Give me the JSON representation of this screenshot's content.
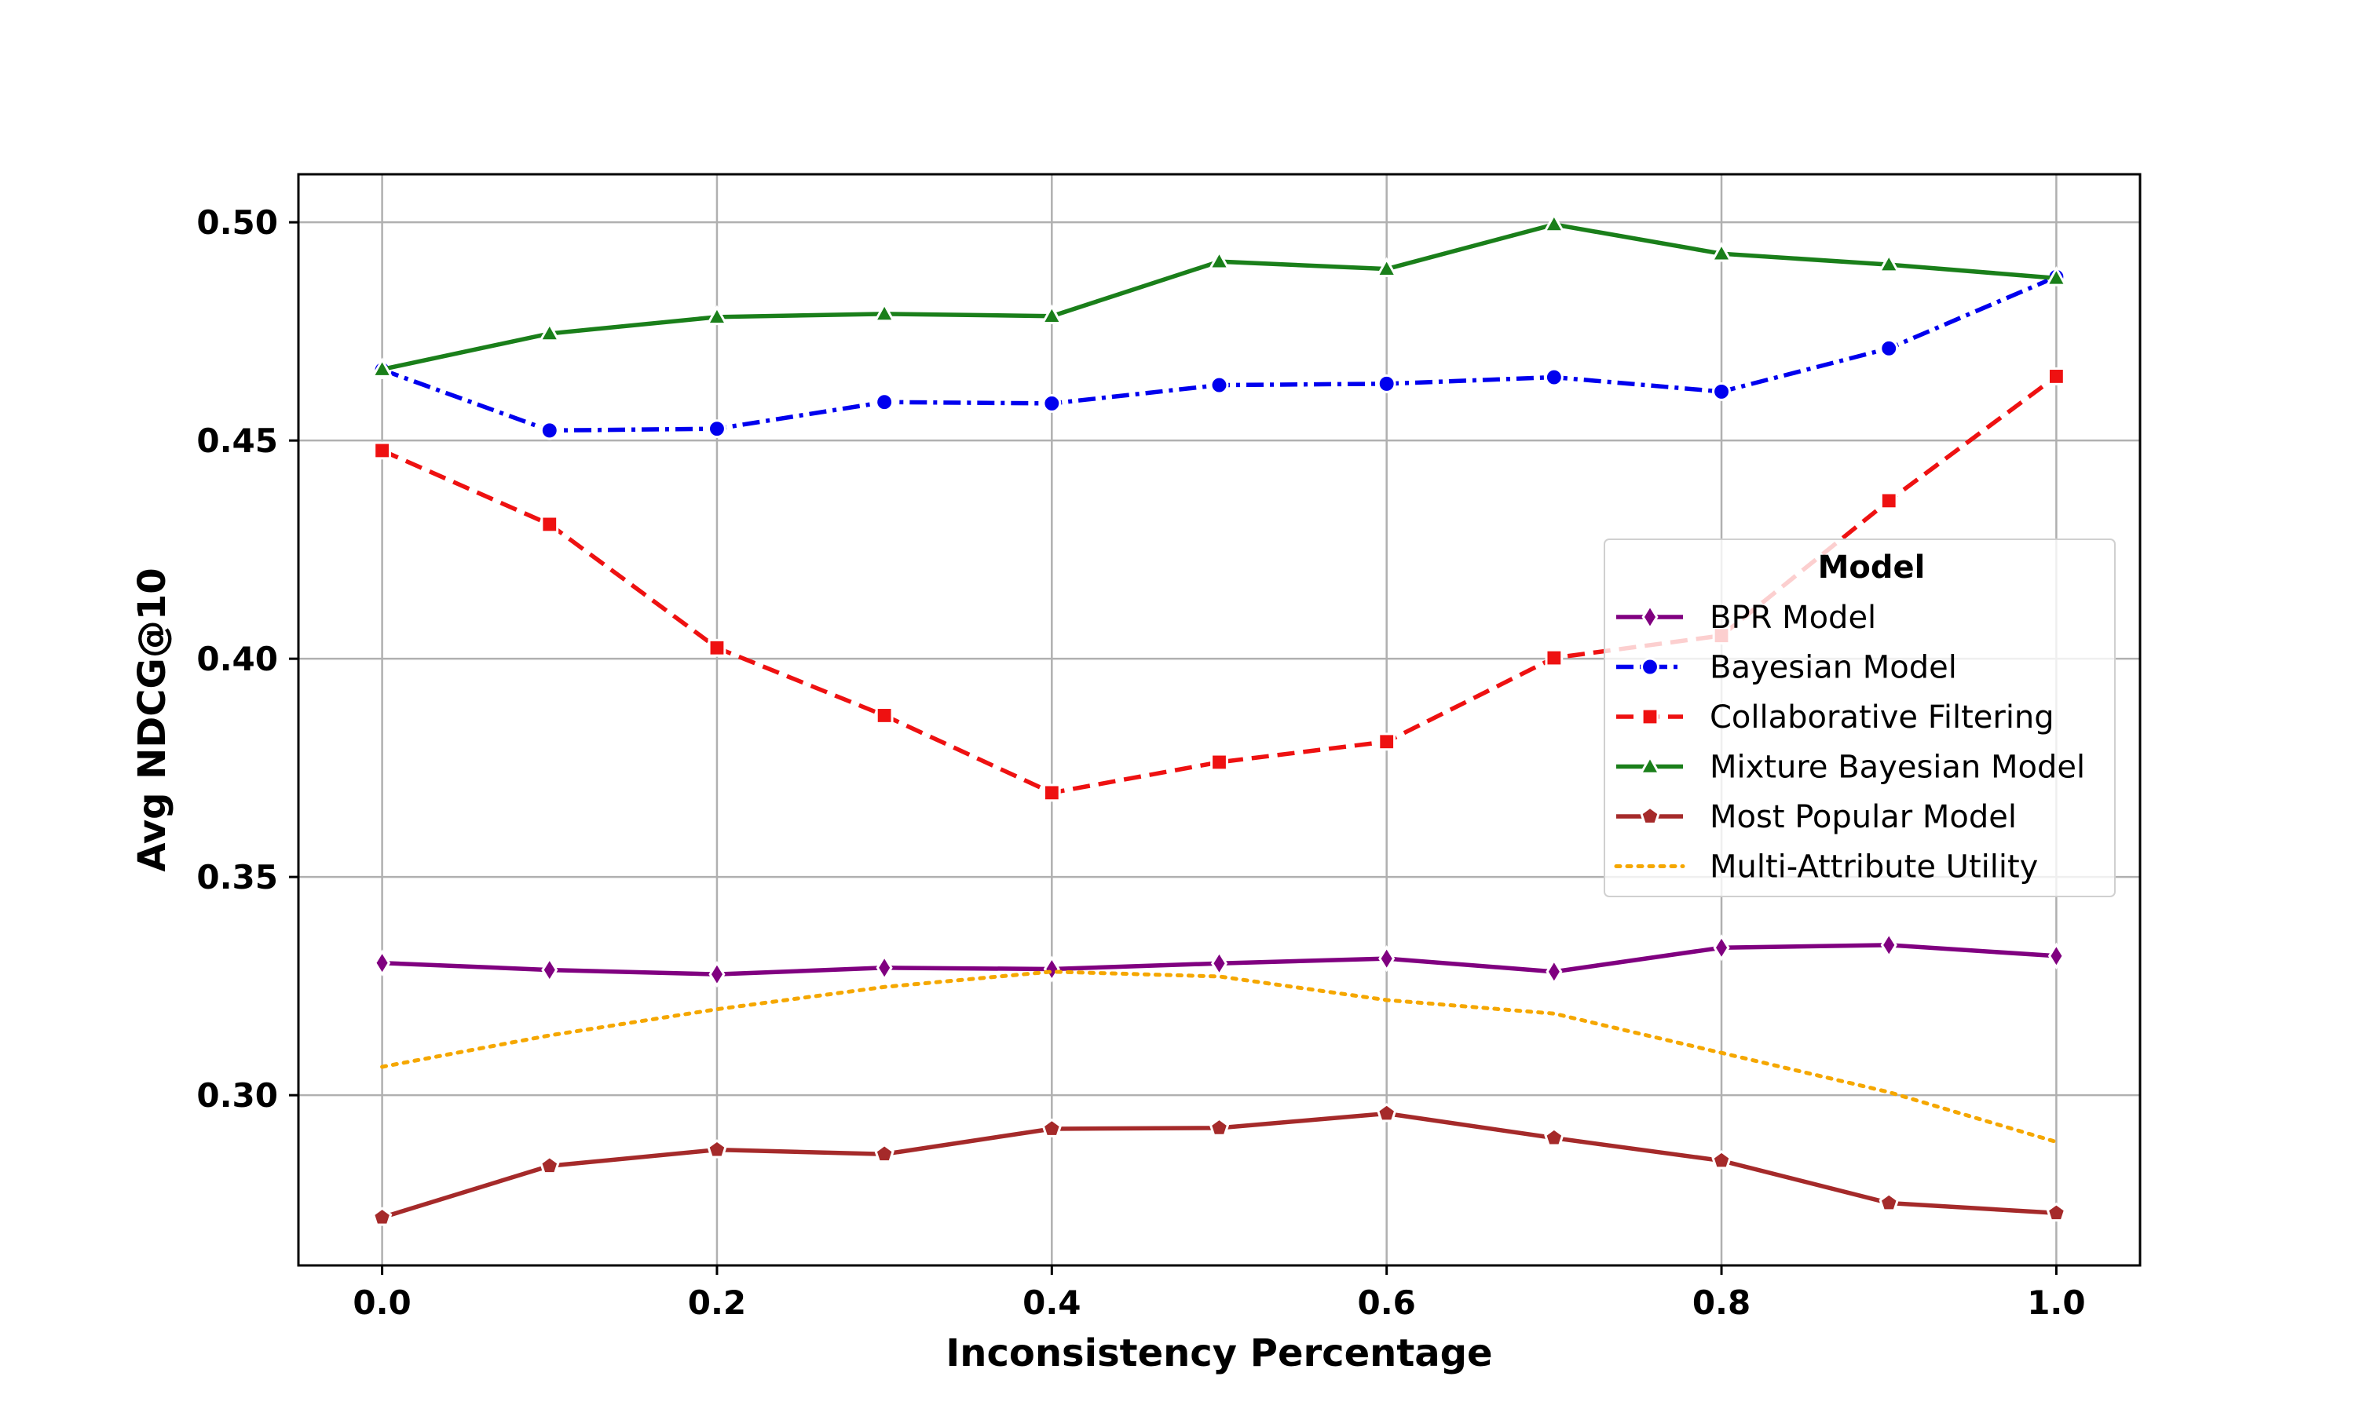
{
  "chart_data": {
    "type": "line",
    "xlabel": "Inconsistency Percentage",
    "ylabel": "Avg NDCG@10",
    "xlim": [
      -0.05,
      1.05
    ],
    "ylim": [
      0.261,
      0.511
    ],
    "x": [
      0.0,
      0.1,
      0.2,
      0.3,
      0.4,
      0.5,
      0.6,
      0.7,
      0.8,
      0.9,
      1.0
    ],
    "x_ticks": [
      "0.0",
      "0.2",
      "0.4",
      "0.6",
      "0.8",
      "1.0"
    ],
    "y_ticks": [
      "0.30",
      "0.35",
      "0.40",
      "0.45",
      "0.50"
    ],
    "grid": true,
    "legend": {
      "title": "Model",
      "placement": "center-right"
    },
    "series": [
      {
        "name": "BPR Model",
        "color": "#800080",
        "dash": "solid",
        "marker": "diamond",
        "values": [
          0.3303,
          0.3287,
          0.3277,
          0.3292,
          0.3289,
          0.3302,
          0.3313,
          0.3283,
          0.3338,
          0.3344,
          0.3319
        ]
      },
      {
        "name": "Bayesian Model",
        "color": "#0000ee",
        "dash": "dashdot",
        "marker": "circle",
        "values": [
          0.4662,
          0.4523,
          0.4527,
          0.4588,
          0.4585,
          0.4627,
          0.463,
          0.4645,
          0.4612,
          0.4711,
          0.4875
        ]
      },
      {
        "name": "Collaborative Filtering",
        "color": "#ee1111",
        "dash": "dashed",
        "marker": "square",
        "values": [
          0.4477,
          0.4308,
          0.4025,
          0.387,
          0.3693,
          0.3763,
          0.381,
          0.4002,
          0.4053,
          0.4362,
          0.4647
        ]
      },
      {
        "name": "Mixture Bayesian Model",
        "color": "#1a7f1a",
        "dash": "solid",
        "marker": "triangle",
        "values": [
          0.4663,
          0.4745,
          0.4783,
          0.479,
          0.4785,
          0.491,
          0.4893,
          0.4995,
          0.4928,
          0.4903,
          0.4872
        ]
      },
      {
        "name": "Most Popular Model",
        "color": "#a52a2a",
        "dash": "solid",
        "marker": "pentagon",
        "values": [
          0.272,
          0.2838,
          0.2875,
          0.2865,
          0.2923,
          0.2925,
          0.2958,
          0.2902,
          0.285,
          0.2753,
          0.273
        ]
      },
      {
        "name": "Multi-Attribute Utility",
        "color": "#f5a700",
        "dash": "dotted",
        "marker": "none",
        "values": [
          0.3065,
          0.3137,
          0.3197,
          0.3248,
          0.3283,
          0.3272,
          0.3218,
          0.3187,
          0.3097,
          0.3007,
          0.2893
        ]
      }
    ]
  }
}
